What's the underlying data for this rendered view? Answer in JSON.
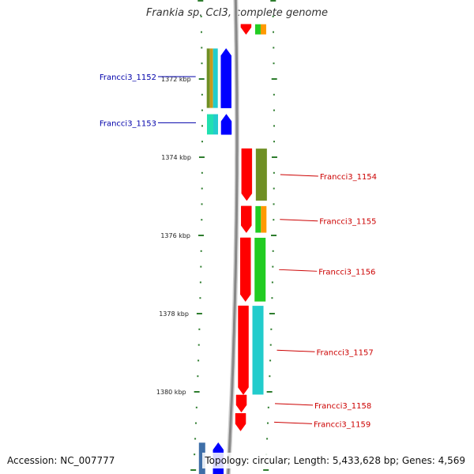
{
  "title": "Frankia sp. CcI3, complete genome",
  "footer": {
    "accession": "Accession: NC_007777",
    "summary": "Topology: circular; Length: 5,433,628 bp; Genes: 4,569"
  },
  "colors": {
    "backbone": "#888888",
    "tick": "#2e7d2e",
    "forward_label": "#0000aa",
    "reverse_label": "#cc0000"
  },
  "scale": {
    "unit": "kbp",
    "major_ticks": [
      {
        "kbp": 1372,
        "label": "1372 kbp"
      },
      {
        "kbp": 1374,
        "label": "1374 kbp"
      },
      {
        "kbp": 1376,
        "label": "1376 kbp"
      },
      {
        "kbp": 1378,
        "label": "1378 kbp"
      },
      {
        "kbp": 1380,
        "label": "1380 kbp"
      }
    ]
  },
  "genes": [
    {
      "name": "",
      "strand": "-",
      "start_kbp": 1370.6,
      "end_kbp": 1370.86,
      "labeled": false
    },
    {
      "name": "Francci3_1152",
      "strand": "+",
      "start_kbp": 1371.22,
      "end_kbp": 1372.74,
      "labeled": true
    },
    {
      "name": "Francci3_1153",
      "strand": "+",
      "start_kbp": 1372.9,
      "end_kbp": 1373.42,
      "labeled": true
    },
    {
      "name": "Francci3_1154",
      "strand": "-",
      "start_kbp": 1373.78,
      "end_kbp": 1375.11,
      "labeled": true
    },
    {
      "name": "Francci3_1155",
      "strand": "-",
      "start_kbp": 1375.25,
      "end_kbp": 1375.93,
      "labeled": true
    },
    {
      "name": "Francci3_1156",
      "strand": "-",
      "start_kbp": 1376.06,
      "end_kbp": 1377.69,
      "labeled": true
    },
    {
      "name": "Francci3_1157",
      "strand": "-",
      "start_kbp": 1377.8,
      "end_kbp": 1380.07,
      "labeled": true
    },
    {
      "name": "Francci3_1158",
      "strand": "-",
      "start_kbp": 1380.08,
      "end_kbp": 1380.52,
      "labeled": true
    },
    {
      "name": "Francci3_1159",
      "strand": "-",
      "start_kbp": 1380.55,
      "end_kbp": 1381.0,
      "labeled": true
    },
    {
      "name": "",
      "strand": "+",
      "start_kbp": 1381.3,
      "end_kbp": 1382.2,
      "labeled": false
    }
  ],
  "tracks": {
    "forward_outer": [
      {
        "start_kbp": 1371.22,
        "end_kbp": 1372.74,
        "colors": [
          "#6f8f24",
          "#c89a1c"
        ]
      },
      {
        "start_kbp": 1372.9,
        "end_kbp": 1373.42,
        "colors": [
          "#20e0b0"
        ]
      },
      {
        "start_kbp": 1381.3,
        "end_kbp": 1382.2,
        "colors": [
          "#3f6fa8"
        ]
      }
    ],
    "forward_inner": [
      {
        "start_kbp": 1371.22,
        "end_kbp": 1372.74,
        "colors": [
          "#22cccc"
        ]
      },
      {
        "start_kbp": 1372.9,
        "end_kbp": 1373.42,
        "colors": [
          "#22cccc"
        ]
      }
    ],
    "reverse_outer": [
      {
        "start_kbp": 1370.6,
        "end_kbp": 1370.86,
        "colors": [
          "#22cc22",
          "#ff9900"
        ]
      },
      {
        "start_kbp": 1373.78,
        "end_kbp": 1375.11,
        "colors": [
          "#6f8f24"
        ]
      },
      {
        "start_kbp": 1375.25,
        "end_kbp": 1375.93,
        "colors": [
          "#22cc22",
          "#ff9900"
        ]
      },
      {
        "start_kbp": 1376.06,
        "end_kbp": 1377.69,
        "colors": [
          "#22cc22"
        ]
      },
      {
        "start_kbp": 1377.8,
        "end_kbp": 1380.07,
        "colors": [
          "#22cccc"
        ]
      }
    ]
  }
}
